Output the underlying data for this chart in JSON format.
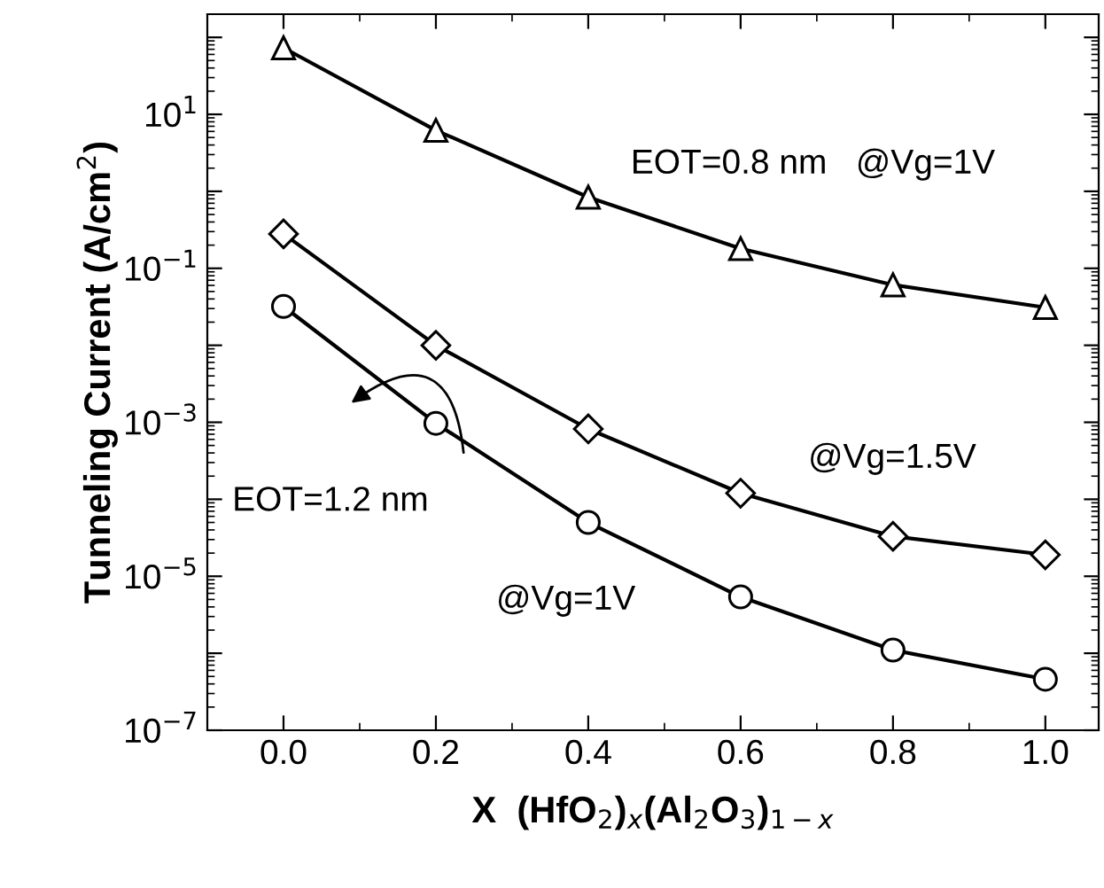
{
  "chart_data": {
    "type": "line",
    "xlabel": "X  (HfO$_{2}$)$_{x}$(Al$_{2}$O$_{3}$)$_{1−x}$",
    "ylabel": "Tunneling Current (A/cm$^{2}$)",
    "x": [
      0.0,
      0.2,
      0.4,
      0.6,
      0.8,
      1.0
    ],
    "series": [
      {
        "color": "#000000",
        "marker": "triangle",
        "values": [
          73,
          6.2,
          0.84,
          0.18,
          0.061,
          0.031
        ]
      },
      {
        "color": "#000000",
        "marker": "diamond",
        "values": [
          0.28,
          0.01,
          0.00082,
          0.00012,
          3.3e-05,
          1.9e-05
        ]
      },
      {
        "color": "#000000",
        "marker": "circle",
        "values": [
          0.032,
          0.00097,
          5e-05,
          5.4e-06,
          1.1e-06,
          4.6e-07
        ]
      }
    ],
    "log": "y",
    "xlim": [
      -0.1,
      1.07
    ],
    "ylim": [
      1e-07,
      200
    ],
    "xticks": [
      {
        "value": 0.0,
        "label": "0.0"
      },
      {
        "value": 0.1,
        "label": null
      },
      {
        "value": 0.2,
        "label": "0.2"
      },
      {
        "value": 0.3,
        "label": null
      },
      {
        "value": 0.4,
        "label": "0.4"
      },
      {
        "value": 0.5,
        "label": null
      },
      {
        "value": 0.6,
        "label": "0.6"
      },
      {
        "value": 0.7,
        "label": null
      },
      {
        "value": 0.8,
        "label": "0.8"
      },
      {
        "value": 0.9,
        "label": null
      },
      {
        "value": 1.0,
        "label": "1.0"
      }
    ],
    "yticks": [
      {
        "value": 1e-07,
        "label": "10$^{−7}$"
      },
      {
        "value": 1e-06,
        "label": null
      },
      {
        "value": 1e-05,
        "label": "10$^{−5}$"
      },
      {
        "value": 0.0001,
        "label": null
      },
      {
        "value": 0.001,
        "label": "10$^{−3}$"
      },
      {
        "value": 0.01,
        "label": null
      },
      {
        "value": 0.1,
        "label": "10$^{−1}$"
      },
      {
        "value": 1,
        "label": null
      },
      {
        "value": 10,
        "label": "10$^{1}$"
      },
      {
        "value": 100,
        "label": null
      }
    ],
    "grid": false,
    "legend": false,
    "line_style": "solid",
    "annotations": [
      "EOT=0.8 nm   @Vg=1V",
      "@Vg=1.5V",
      "EOT=1.2 nm",
      "@Vg=1V"
    ]
  }
}
